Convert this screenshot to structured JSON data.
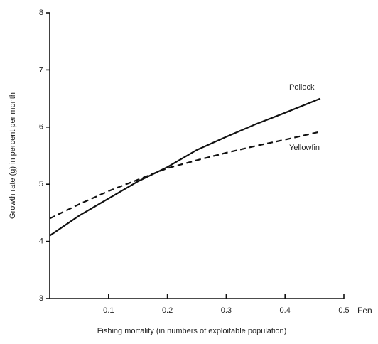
{
  "chart_data": {
    "type": "line",
    "x_label": "Fishing mortality (in numbers of exploitable population)",
    "y_label": "Growth rate (g) in percent per month",
    "x_end_label": "Fen",
    "x": [
      0,
      0.05,
      0.1,
      0.15,
      0.2,
      0.25,
      0.3,
      0.35,
      0.4,
      0.46
    ],
    "series": [
      {
        "name": "Pollock",
        "color": "#111111",
        "dash": false,
        "values": [
          4.1,
          4.45,
          4.75,
          5.05,
          5.3,
          5.6,
          5.83,
          6.05,
          6.25,
          6.5
        ]
      },
      {
        "name": "Yellowfin",
        "color": "#111111",
        "dash": true,
        "values": [
          4.4,
          4.65,
          4.88,
          5.08,
          5.28,
          5.42,
          5.55,
          5.67,
          5.78,
          5.92
        ]
      }
    ],
    "xlim": [
      0,
      0.5
    ],
    "xticks": [
      0.1,
      0.2,
      0.3,
      0.4,
      0.5
    ],
    "ylim": [
      3,
      8
    ],
    "yticks": [
      3,
      4,
      5,
      6,
      7,
      8
    ]
  }
}
